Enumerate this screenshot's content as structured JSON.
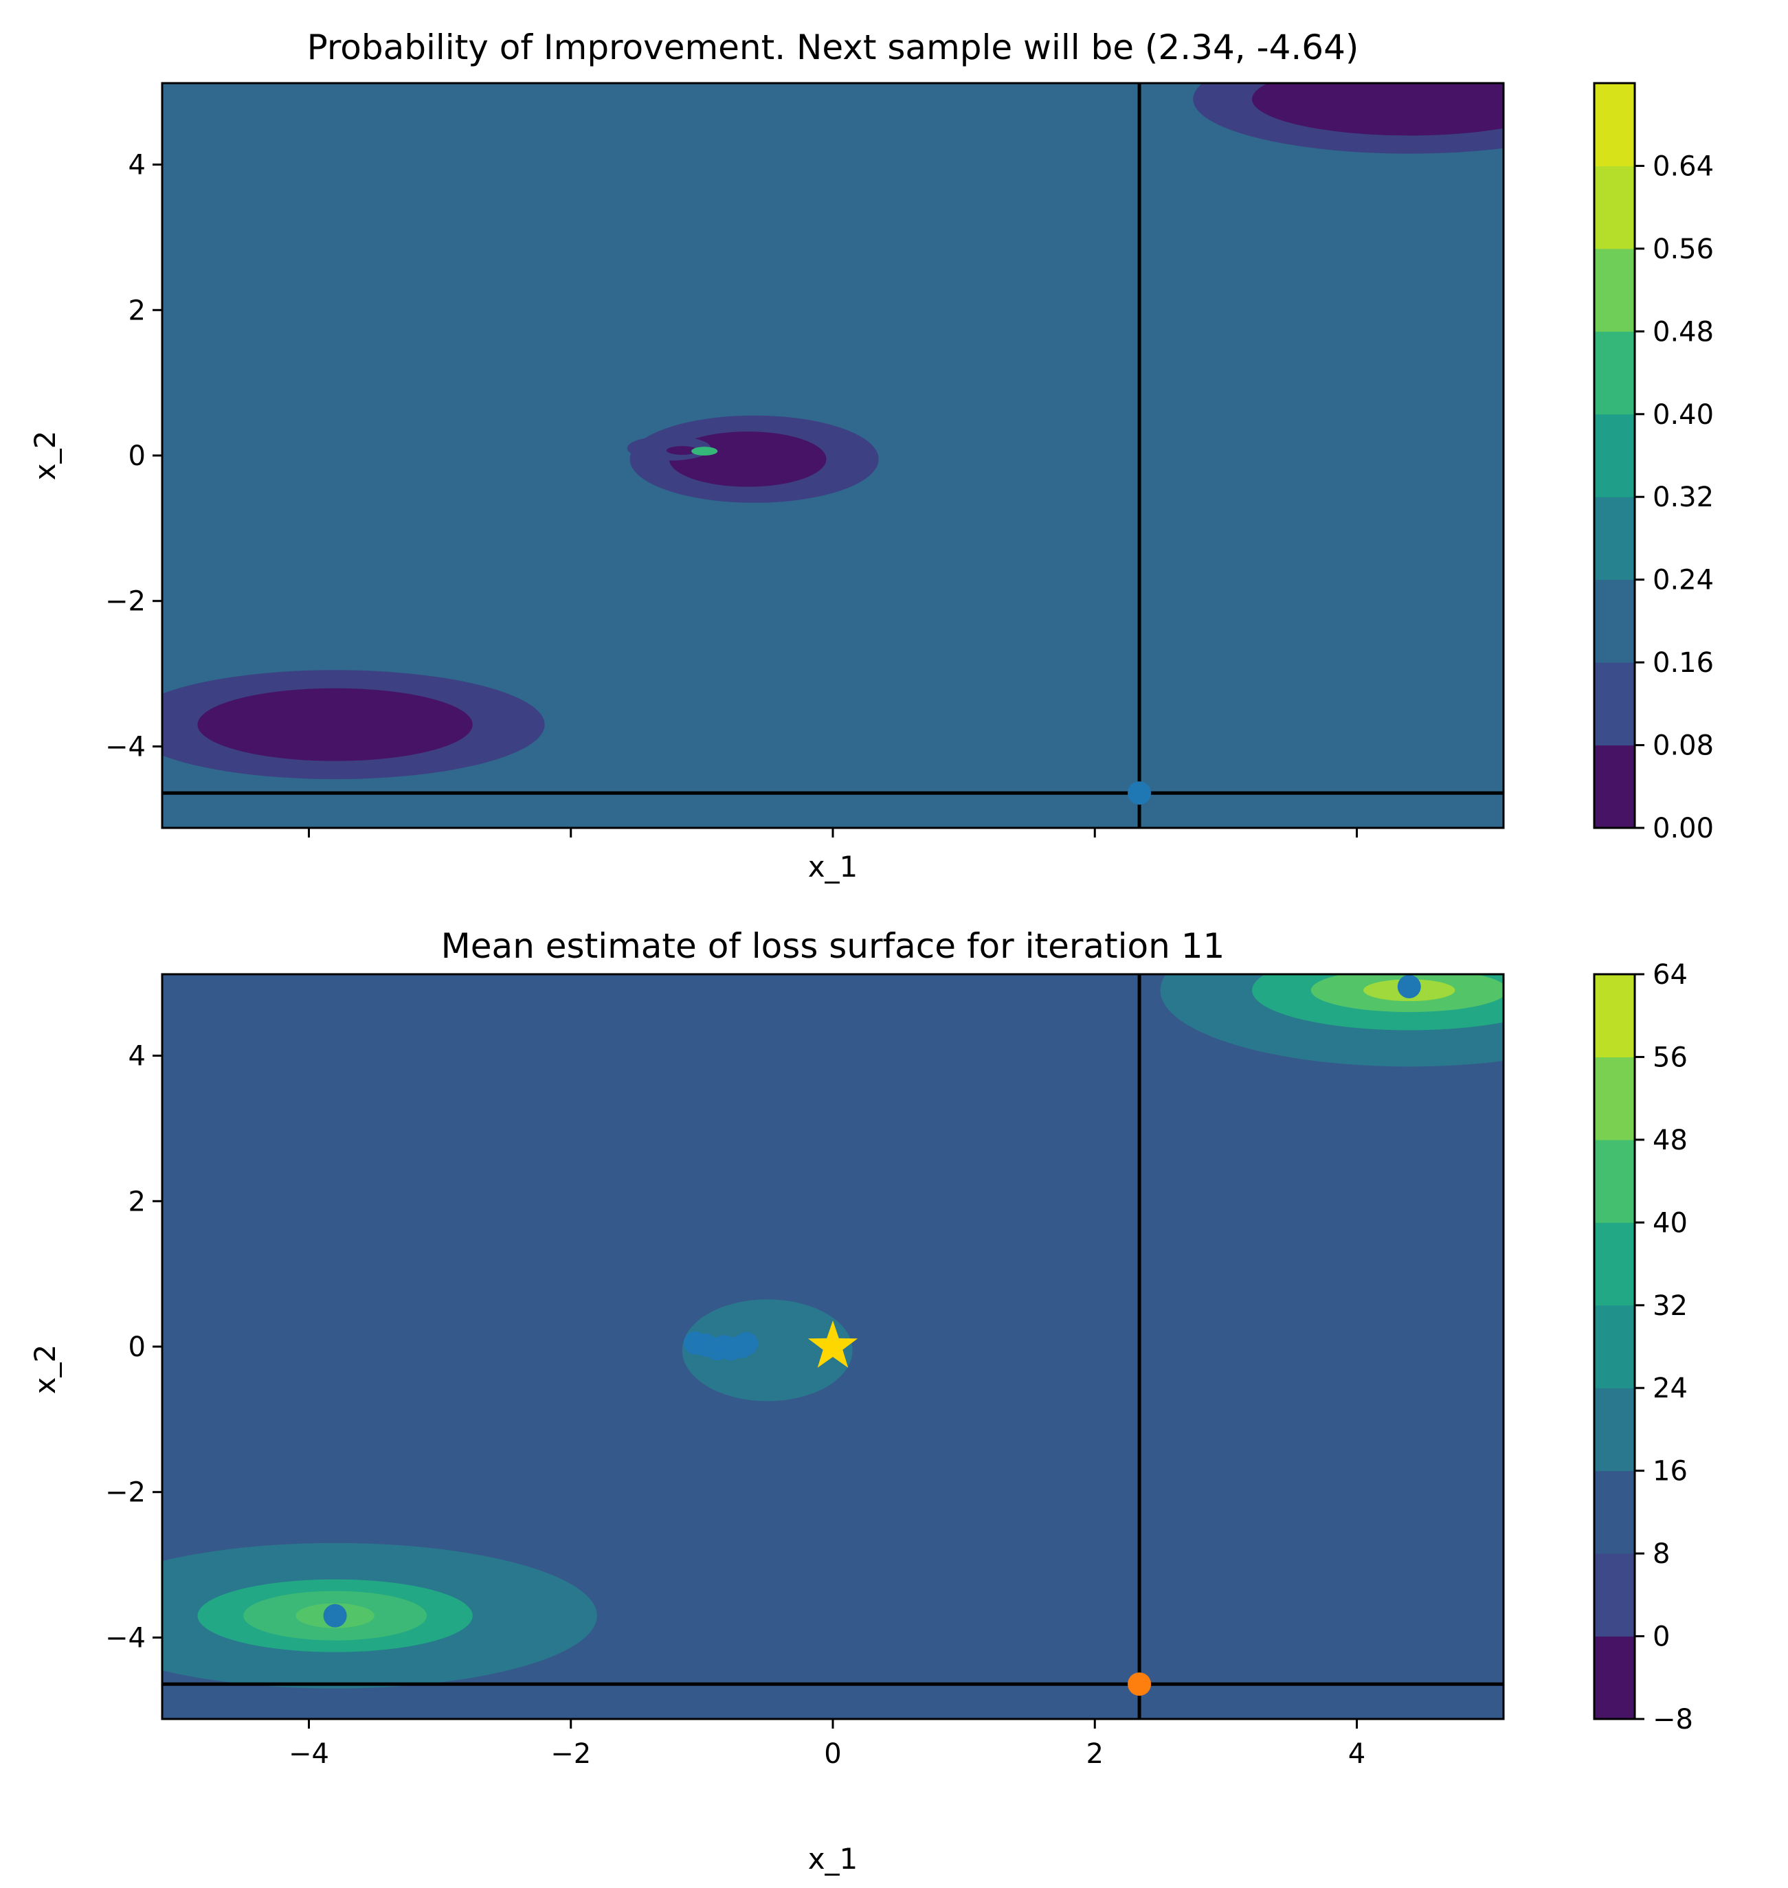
{
  "chart_data": [
    {
      "type": "heatmap",
      "subtype": "filled-contour",
      "title": "Probability of Improvement. Next sample will be (2.34, -4.64)",
      "xlabel": "x_1",
      "ylabel": "x_2",
      "xlim": [
        -5.12,
        5.12
      ],
      "ylim": [
        -5.12,
        5.12
      ],
      "xticks": [
        -4,
        -2,
        0,
        2,
        4
      ],
      "show_xtick_labels": false,
      "yticks": [
        -4,
        -2,
        0,
        2,
        4
      ],
      "ytick_labels": [
        "−4",
        "−2",
        "0",
        "2",
        "4"
      ],
      "grid": false,
      "colormap": "viridis",
      "background_level": [
        0.16,
        0.24
      ],
      "colorbar": {
        "levels": [
          0.0,
          0.08,
          0.16,
          0.24,
          0.32,
          0.4,
          0.48,
          0.56,
          0.64
        ],
        "tick_labels": [
          "0.00",
          "0.08",
          "0.16",
          "0.24",
          "0.32",
          "0.40",
          "0.48",
          "0.56",
          "0.64"
        ],
        "colors": [
          "#471365",
          "#3b4d8a",
          "#31688e",
          "#26828e",
          "#1f9e89",
          "#35b779",
          "#6ece58",
          "#b5de2b",
          "#d8e219"
        ]
      },
      "regions": [
        {
          "cx": -3.8,
          "cy": -3.7,
          "rx": 1.6,
          "ry": 0.75,
          "color": "#3d4082"
        },
        {
          "cx": -3.8,
          "cy": -3.7,
          "rx": 1.05,
          "ry": 0.5,
          "color": "#471366"
        },
        {
          "cx": 4.4,
          "cy": 4.9,
          "rx": 1.65,
          "ry": 0.75,
          "color": "#3d4082"
        },
        {
          "cx": 4.4,
          "cy": 4.9,
          "rx": 1.2,
          "ry": 0.5,
          "color": "#471366"
        },
        {
          "cx": -0.6,
          "cy": -0.05,
          "rx": 0.95,
          "ry": 0.6,
          "color": "#3d4082"
        },
        {
          "cx": -0.65,
          "cy": -0.05,
          "rx": 0.6,
          "ry": 0.38,
          "color": "#471366"
        },
        {
          "cx": -1.25,
          "cy": 0.1,
          "rx": 0.32,
          "ry": 0.17,
          "color": "#3d4082"
        },
        {
          "cx": -1.15,
          "cy": 0.07,
          "rx": 0.12,
          "ry": 0.06,
          "color": "#471366"
        },
        {
          "cx": -0.98,
          "cy": 0.06,
          "rx": 0.1,
          "ry": 0.06,
          "color": "#35b779"
        }
      ],
      "crosshair": {
        "x": 2.34,
        "y": -4.64
      },
      "points": [
        {
          "x": 2.34,
          "y": -4.64,
          "color": "#1f77b4"
        }
      ]
    },
    {
      "type": "heatmap",
      "subtype": "filled-contour",
      "title": "Mean estimate of loss surface for iteration 11",
      "xlabel": "x_1",
      "ylabel": "x_2",
      "xlim": [
        -5.12,
        5.12
      ],
      "ylim": [
        -5.12,
        5.12
      ],
      "xticks": [
        -4,
        -2,
        0,
        2,
        4
      ],
      "xtick_labels": [
        "−4",
        "−2",
        "0",
        "2",
        "4"
      ],
      "show_xtick_labels": true,
      "yticks": [
        -4,
        -2,
        0,
        2,
        4
      ],
      "ytick_labels": [
        "−4",
        "−2",
        "0",
        "2",
        "4"
      ],
      "grid": false,
      "colormap": "viridis",
      "background_level": [
        8,
        16
      ],
      "colorbar": {
        "levels": [
          -8,
          0,
          8,
          16,
          24,
          32,
          40,
          48,
          56,
          64
        ],
        "tick_labels": [
          "−8",
          "0",
          "8",
          "16",
          "24",
          "32",
          "40",
          "48",
          "56",
          "64"
        ],
        "colors": [
          "#471365",
          "#3e4989",
          "#36598b",
          "#2a788e",
          "#21918c",
          "#22a884",
          "#44bf70",
          "#7ad151",
          "#bddf26"
        ]
      },
      "regions": [
        {
          "cx": -3.8,
          "cy": -3.7,
          "rx": 2.0,
          "ry": 1.0,
          "color": "#2a788e"
        },
        {
          "cx": -3.8,
          "cy": -3.7,
          "rx": 1.05,
          "ry": 0.5,
          "color": "#22a884"
        },
        {
          "cx": -3.8,
          "cy": -3.7,
          "rx": 0.7,
          "ry": 0.34,
          "color": "#3cb877"
        },
        {
          "cx": -3.8,
          "cy": -3.7,
          "rx": 0.3,
          "ry": 0.17,
          "color": "#54c468"
        },
        {
          "cx": 4.4,
          "cy": 4.9,
          "rx": 1.9,
          "ry": 1.05,
          "color": "#2a788e"
        },
        {
          "cx": 4.4,
          "cy": 4.9,
          "rx": 1.2,
          "ry": 0.55,
          "color": "#22a884"
        },
        {
          "cx": 4.4,
          "cy": 4.9,
          "rx": 0.75,
          "ry": 0.3,
          "color": "#54c468"
        },
        {
          "cx": 4.4,
          "cy": 4.9,
          "rx": 0.35,
          "ry": 0.15,
          "color": "#a0d93c"
        },
        {
          "cx": -0.5,
          "cy": -0.05,
          "rx": 0.65,
          "ry": 0.7,
          "color": "#2a788e"
        }
      ],
      "crosshair": {
        "x": 2.34,
        "y": -4.64
      },
      "points": [
        {
          "x": -3.8,
          "y": -3.7,
          "color": "#1f77b4"
        },
        {
          "x": 4.4,
          "y": 4.95,
          "color": "#1f77b4"
        },
        {
          "x": -1.05,
          "y": 0.05,
          "color": "#1f77b4"
        },
        {
          "x": -0.97,
          "y": 0.02,
          "color": "#1f77b4"
        },
        {
          "x": -0.88,
          "y": -0.03,
          "color": "#1f77b4"
        },
        {
          "x": -0.83,
          "y": 0.0,
          "color": "#1f77b4"
        },
        {
          "x": -0.78,
          "y": -0.03,
          "color": "#1f77b4"
        },
        {
          "x": -0.7,
          "y": 0.0,
          "color": "#1f77b4"
        },
        {
          "x": -0.66,
          "y": 0.04,
          "color": "#1f77b4"
        },
        {
          "x": 2.34,
          "y": -4.64,
          "color": "#ff7f0e"
        }
      ],
      "star": {
        "x": 0.0,
        "y": 0.0,
        "color": "#ffd700"
      }
    }
  ]
}
